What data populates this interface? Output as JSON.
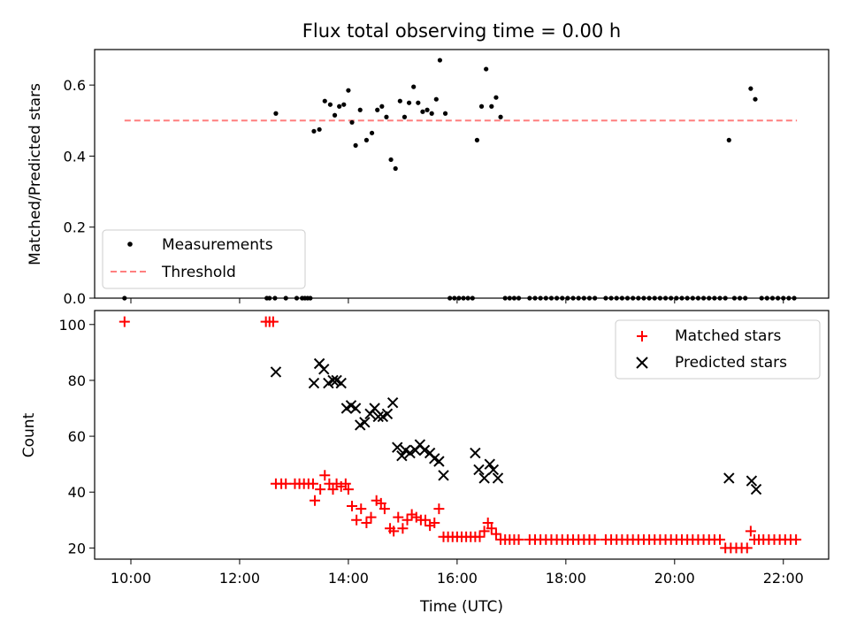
{
  "chart_data": [
    {
      "type": "scatter",
      "title": "Flux total observing time = 0.00 h",
      "xlabel": "",
      "ylabel": "Matched/Predicted stars",
      "xlim": [
        "09:20",
        "22:50"
      ],
      "ylim": [
        0,
        0.7
      ],
      "yticks": [
        "0.0",
        "0.2",
        "0.4",
        "0.6"
      ],
      "xticks_shared": [
        "10:00",
        "12:00",
        "14:00",
        "16:00",
        "18:00",
        "20:00",
        "22:00"
      ],
      "legend_position": "lower-left",
      "series": [
        {
          "name": "Measurements",
          "marker": "dot",
          "color": "#000000",
          "points": [
            [
              "09:53",
              0.0
            ],
            [
              "12:30",
              0.0
            ],
            [
              "12:33",
              0.0
            ],
            [
              "12:39",
              0.0
            ],
            [
              "12:51",
              0.0
            ],
            [
              "13:03",
              0.0
            ],
            [
              "13:09",
              0.0
            ],
            [
              "13:12",
              0.0
            ],
            [
              "13:15",
              0.0
            ],
            [
              "13:18",
              0.0
            ],
            [
              "12:40",
              0.52
            ],
            [
              "13:22",
              0.47
            ],
            [
              "13:28",
              0.475
            ],
            [
              "13:34",
              0.555
            ],
            [
              "13:40",
              0.545
            ],
            [
              "13:45",
              0.515
            ],
            [
              "13:50",
              0.54
            ],
            [
              "13:55",
              0.545
            ],
            [
              "14:00",
              0.585
            ],
            [
              "14:04",
              0.495
            ],
            [
              "14:08",
              0.43
            ],
            [
              "14:13",
              0.53
            ],
            [
              "14:20",
              0.445
            ],
            [
              "14:26",
              0.465
            ],
            [
              "14:32",
              0.53
            ],
            [
              "14:37",
              0.54
            ],
            [
              "14:42",
              0.51
            ],
            [
              "14:47",
              0.39
            ],
            [
              "14:52",
              0.365
            ],
            [
              "14:57",
              0.555
            ],
            [
              "15:02",
              0.51
            ],
            [
              "15:07",
              0.55
            ],
            [
              "15:12",
              0.595
            ],
            [
              "15:17",
              0.55
            ],
            [
              "15:22",
              0.525
            ],
            [
              "15:27",
              0.53
            ],
            [
              "15:32",
              0.52
            ],
            [
              "15:37",
              0.56
            ],
            [
              "15:41",
              0.67
            ],
            [
              "15:47",
              0.52
            ],
            [
              "15:52",
              0.0
            ],
            [
              "15:57",
              0.0
            ],
            [
              "16:02",
              0.0
            ],
            [
              "16:07",
              0.0
            ],
            [
              "16:12",
              0.0
            ],
            [
              "16:17",
              0.0
            ],
            [
              "16:22",
              0.445
            ],
            [
              "16:27",
              0.54
            ],
            [
              "16:32",
              0.645
            ],
            [
              "16:38",
              0.54
            ],
            [
              "16:43",
              0.565
            ],
            [
              "16:48",
              0.51
            ],
            [
              "16:53",
              0.0
            ],
            [
              "16:58",
              0.0
            ],
            [
              "17:03",
              0.0
            ],
            [
              "17:08",
              0.0
            ],
            [
              "17:20",
              0.0
            ],
            [
              "17:26",
              0.0
            ],
            [
              "17:32",
              0.0
            ],
            [
              "17:38",
              0.0
            ],
            [
              "17:44",
              0.0
            ],
            [
              "17:50",
              0.0
            ],
            [
              "17:56",
              0.0
            ],
            [
              "18:02",
              0.0
            ],
            [
              "18:08",
              0.0
            ],
            [
              "18:14",
              0.0
            ],
            [
              "18:20",
              0.0
            ],
            [
              "18:26",
              0.0
            ],
            [
              "18:32",
              0.0
            ],
            [
              "18:44",
              0.0
            ],
            [
              "18:50",
              0.0
            ],
            [
              "18:56",
              0.0
            ],
            [
              "19:02",
              0.0
            ],
            [
              "19:08",
              0.0
            ],
            [
              "19:14",
              0.0
            ],
            [
              "19:20",
              0.0
            ],
            [
              "19:26",
              0.0
            ],
            [
              "19:32",
              0.0
            ],
            [
              "19:38",
              0.0
            ],
            [
              "19:44",
              0.0
            ],
            [
              "19:50",
              0.0
            ],
            [
              "19:56",
              0.0
            ],
            [
              "20:02",
              0.0
            ],
            [
              "20:08",
              0.0
            ],
            [
              "20:14",
              0.0
            ],
            [
              "20:20",
              0.0
            ],
            [
              "20:26",
              0.0
            ],
            [
              "20:32",
              0.0
            ],
            [
              "20:38",
              0.0
            ],
            [
              "20:44",
              0.0
            ],
            [
              "20:50",
              0.0
            ],
            [
              "20:56",
              0.0
            ],
            [
              "21:00",
              0.445
            ],
            [
              "21:06",
              0.0
            ],
            [
              "21:12",
              0.0
            ],
            [
              "21:18",
              0.0
            ],
            [
              "21:24",
              0.59
            ],
            [
              "21:29",
              0.56
            ],
            [
              "21:36",
              0.0
            ],
            [
              "21:42",
              0.0
            ],
            [
              "21:48",
              0.0
            ],
            [
              "21:54",
              0.0
            ],
            [
              "22:00",
              0.0
            ],
            [
              "22:06",
              0.0
            ],
            [
              "22:12",
              0.0
            ]
          ]
        },
        {
          "name": "Threshold",
          "marker": "dashed-line",
          "color": "#ff7f7f",
          "points": [
            [
              "09:53",
              0.5
            ],
            [
              "22:15",
              0.5
            ]
          ]
        }
      ]
    },
    {
      "type": "scatter",
      "title": "",
      "xlabel": "Time (UTC)",
      "ylabel": "Count",
      "xlim": [
        "09:20",
        "22:50"
      ],
      "ylim": [
        16,
        105
      ],
      "yticks": [
        "20",
        "40",
        "60",
        "80",
        "100"
      ],
      "xticks": [
        "10:00",
        "12:00",
        "14:00",
        "16:00",
        "18:00",
        "20:00",
        "22:00"
      ],
      "legend_position": "upper-right",
      "series": [
        {
          "name": "Matched stars",
          "marker": "plus",
          "color": "#ff0000",
          "points": [
            [
              "09:53",
              101
            ],
            [
              "12:29",
              101
            ],
            [
              "12:33",
              101
            ],
            [
              "12:37",
              101
            ],
            [
              "12:40",
              43
            ],
            [
              "12:46",
              43
            ],
            [
              "12:51",
              43
            ],
            [
              "13:01",
              43
            ],
            [
              "13:06",
              43
            ],
            [
              "13:11",
              43
            ],
            [
              "13:16",
              43
            ],
            [
              "13:21",
              43
            ],
            [
              "13:23",
              37
            ],
            [
              "13:29",
              41
            ],
            [
              "13:34",
              46
            ],
            [
              "13:39",
              43
            ],
            [
              "13:43",
              41
            ],
            [
              "13:47",
              43
            ],
            [
              "13:52",
              42
            ],
            [
              "13:57",
              43
            ],
            [
              "14:00",
              41
            ],
            [
              "14:04",
              35
            ],
            [
              "14:09",
              30
            ],
            [
              "14:14",
              34
            ],
            [
              "14:20",
              29
            ],
            [
              "14:25",
              31
            ],
            [
              "14:31",
              37
            ],
            [
              "14:36",
              36
            ],
            [
              "14:40",
              34
            ],
            [
              "14:46",
              27
            ],
            [
              "14:50",
              26
            ],
            [
              "14:55",
              31
            ],
            [
              "15:00",
              27
            ],
            [
              "15:05",
              30
            ],
            [
              "15:10",
              32
            ],
            [
              "15:15",
              31
            ],
            [
              "15:20",
              30
            ],
            [
              "15:25",
              30
            ],
            [
              "15:30",
              28
            ],
            [
              "15:35",
              29
            ],
            [
              "15:40",
              34
            ],
            [
              "15:45",
              24
            ],
            [
              "15:50",
              24
            ],
            [
              "15:55",
              24
            ],
            [
              "16:00",
              24
            ],
            [
              "16:05",
              24
            ],
            [
              "16:10",
              24
            ],
            [
              "16:15",
              24
            ],
            [
              "16:20",
              24
            ],
            [
              "16:25",
              24
            ],
            [
              "16:30",
              26
            ],
            [
              "16:34",
              29
            ],
            [
              "16:38",
              27
            ],
            [
              "16:43",
              25
            ],
            [
              "16:48",
              23
            ],
            [
              "16:53",
              23
            ],
            [
              "16:58",
              23
            ],
            [
              "17:03",
              23
            ],
            [
              "17:08",
              23
            ],
            [
              "17:20",
              23
            ],
            [
              "17:26",
              23
            ],
            [
              "17:32",
              23
            ],
            [
              "17:38",
              23
            ],
            [
              "17:44",
              23
            ],
            [
              "17:50",
              23
            ],
            [
              "17:56",
              23
            ],
            [
              "18:02",
              23
            ],
            [
              "18:08",
              23
            ],
            [
              "18:14",
              23
            ],
            [
              "18:20",
              23
            ],
            [
              "18:26",
              23
            ],
            [
              "18:32",
              23
            ],
            [
              "18:44",
              23
            ],
            [
              "18:50",
              23
            ],
            [
              "18:56",
              23
            ],
            [
              "19:02",
              23
            ],
            [
              "19:08",
              23
            ],
            [
              "19:14",
              23
            ],
            [
              "19:20",
              23
            ],
            [
              "19:26",
              23
            ],
            [
              "19:32",
              23
            ],
            [
              "19:38",
              23
            ],
            [
              "19:44",
              23
            ],
            [
              "19:50",
              23
            ],
            [
              "19:56",
              23
            ],
            [
              "20:02",
              23
            ],
            [
              "20:08",
              23
            ],
            [
              "20:14",
              23
            ],
            [
              "20:20",
              23
            ],
            [
              "20:26",
              23
            ],
            [
              "20:32",
              23
            ],
            [
              "20:38",
              23
            ],
            [
              "20:44",
              23
            ],
            [
              "20:50",
              23
            ],
            [
              "20:56",
              20
            ],
            [
              "21:02",
              20
            ],
            [
              "21:08",
              20
            ],
            [
              "21:14",
              20
            ],
            [
              "21:20",
              20
            ],
            [
              "21:24",
              26
            ],
            [
              "21:28",
              23
            ],
            [
              "21:33",
              23
            ],
            [
              "21:38",
              23
            ],
            [
              "21:44",
              23
            ],
            [
              "21:50",
              23
            ],
            [
              "21:56",
              23
            ],
            [
              "22:02",
              23
            ],
            [
              "22:08",
              23
            ],
            [
              "22:14",
              23
            ]
          ]
        },
        {
          "name": "Predicted stars",
          "marker": "x",
          "color": "#000000",
          "points": [
            [
              "12:40",
              83
            ],
            [
              "13:22",
              79
            ],
            [
              "13:28",
              86
            ],
            [
              "13:33",
              84
            ],
            [
              "13:38",
              79
            ],
            [
              "13:43",
              80
            ],
            [
              "13:47",
              80
            ],
            [
              "13:52",
              79
            ],
            [
              "13:58",
              70
            ],
            [
              "14:03",
              71
            ],
            [
              "14:08",
              70
            ],
            [
              "14:13",
              64
            ],
            [
              "14:18",
              65
            ],
            [
              "14:24",
              68
            ],
            [
              "14:29",
              70
            ],
            [
              "14:33",
              67
            ],
            [
              "14:38",
              67
            ],
            [
              "14:43",
              68
            ],
            [
              "14:49",
              72
            ],
            [
              "14:54",
              56
            ],
            [
              "14:59",
              53
            ],
            [
              "15:03",
              55
            ],
            [
              "15:08",
              54
            ],
            [
              "15:14",
              55
            ],
            [
              "15:19",
              57
            ],
            [
              "15:24",
              55
            ],
            [
              "15:30",
              54
            ],
            [
              "15:35",
              52
            ],
            [
              "15:40",
              51
            ],
            [
              "15:45",
              46
            ],
            [
              "16:20",
              54
            ],
            [
              "16:24",
              48
            ],
            [
              "16:30",
              45
            ],
            [
              "16:36",
              50
            ],
            [
              "16:40",
              48
            ],
            [
              "16:45",
              45
            ],
            [
              "21:00",
              45
            ],
            [
              "21:25",
              44
            ],
            [
              "21:30",
              41
            ]
          ]
        }
      ]
    }
  ]
}
